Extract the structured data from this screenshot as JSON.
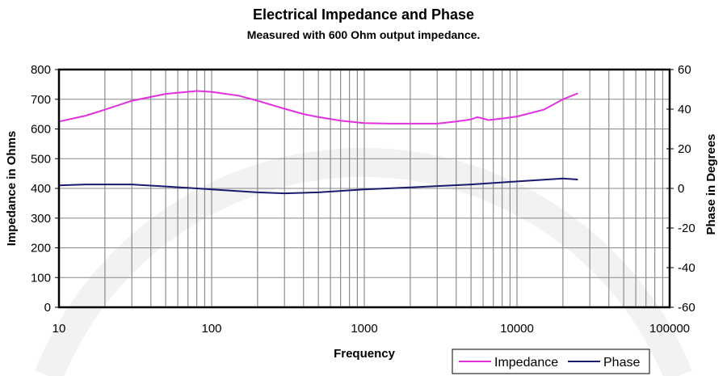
{
  "chart_data": {
    "type": "line",
    "title": "Electrical Impedance and Phase",
    "subtitle": "Measured with 600 Ohm output impedance.",
    "xlabel": "Frequency",
    "ylabel": "Impedance in Ohms",
    "y2label": "Phase in Degrees",
    "xscale": "log",
    "xlim": [
      10,
      100000
    ],
    "ylim": [
      0,
      800
    ],
    "y2lim": [
      -60,
      60
    ],
    "x_ticks": [
      "10",
      "100",
      "1000",
      "10000",
      "100000"
    ],
    "y_ticks": [
      "0",
      "100",
      "200",
      "300",
      "400",
      "500",
      "600",
      "700",
      "800"
    ],
    "y2_ticks": [
      "-60",
      "-40",
      "-20",
      "0",
      "20",
      "40",
      "60"
    ],
    "grid": true,
    "legend_position": "bottom-right",
    "series": [
      {
        "name": "Impedance",
        "axis": "left",
        "color": "#e030e0",
        "x": [
          10,
          15,
          20,
          30,
          50,
          80,
          100,
          150,
          200,
          300,
          400,
          500,
          700,
          1000,
          1500,
          3000,
          4000,
          5000,
          5500,
          6500,
          8000,
          10000,
          15000,
          20000,
          25000
        ],
        "y": [
          625,
          645,
          665,
          695,
          718,
          728,
          725,
          712,
          695,
          668,
          650,
          640,
          628,
          620,
          618,
          618,
          625,
          632,
          640,
          630,
          635,
          642,
          665,
          700,
          720
        ]
      },
      {
        "name": "Phase",
        "axis": "right",
        "color": "#1a1a6e",
        "x": [
          10,
          15,
          30,
          50,
          80,
          100,
          200,
          300,
          500,
          1000,
          2000,
          5000,
          10000,
          20000,
          25000
        ],
        "y": [
          1.5,
          2,
          2,
          1,
          0,
          -0.5,
          -2,
          -2.5,
          -2,
          -0.5,
          0.5,
          2,
          3.5,
          5,
          4.5
        ]
      }
    ]
  }
}
